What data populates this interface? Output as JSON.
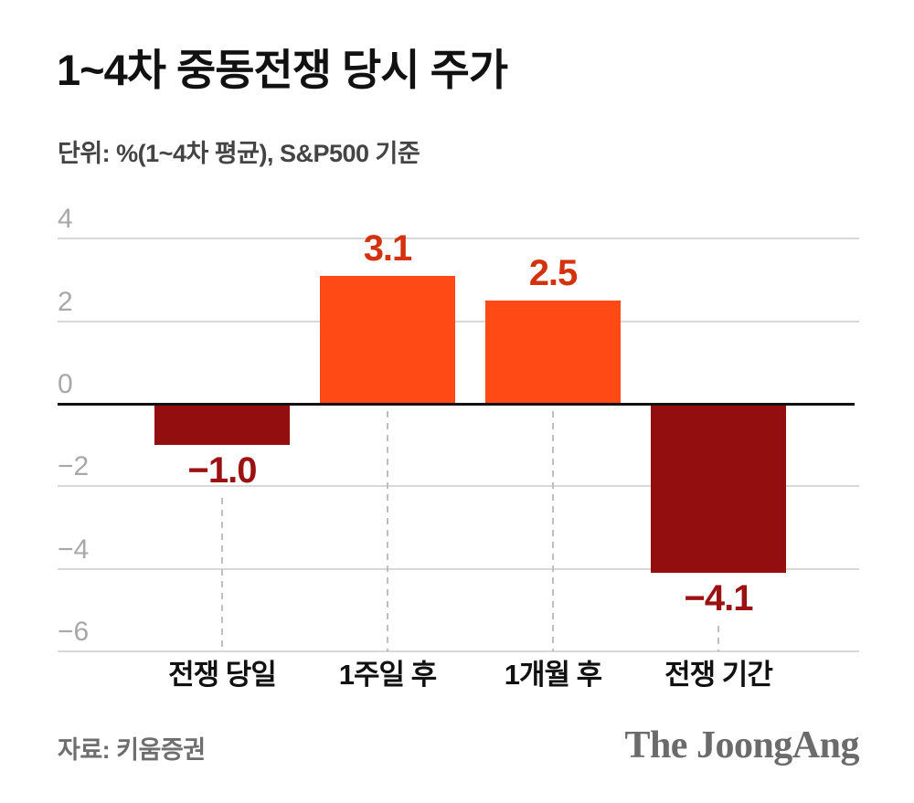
{
  "header": {
    "title": "1~4차 중동전쟁 당시 주가",
    "subtitle": "단위: %(1~4차 평균), S&P500 기준"
  },
  "footer": {
    "source": "자료: 키움증권",
    "logo": "The JoongAng"
  },
  "chart_data": {
    "type": "bar",
    "title": "1~4차 중동전쟁 당시 주가",
    "unit_note": "단위: %(1~4차 평균), S&P500 기준",
    "categories": [
      "전쟁 당일",
      "1주일 후",
      "1개월 후",
      "전쟁 기간"
    ],
    "values": [
      -1.0,
      3.1,
      2.5,
      -4.1
    ],
    "value_labels": [
      "−1.0",
      "3.1",
      "2.5",
      "−4.1"
    ],
    "ylim": [
      -6,
      4
    ],
    "yticks": [
      4,
      2,
      0,
      -2,
      -4,
      -6
    ],
    "ytick_labels": [
      "4",
      "2",
      "0",
      "−2",
      "−4",
      "−6"
    ],
    "grid": "horizontal",
    "legend": "none",
    "source": "자료: 키움증권",
    "colors": {
      "bar_positive": "#FF4A16",
      "bar_negative": "#930F0F",
      "label_positive": "#D2330E",
      "label_negative": "#9A1212",
      "gridline": "#D8D8D8",
      "zero_line": "#111111",
      "tick_label": "#A8A8A8",
      "guide_dash": "#BFBFBF",
      "category_label": "#111111"
    }
  }
}
